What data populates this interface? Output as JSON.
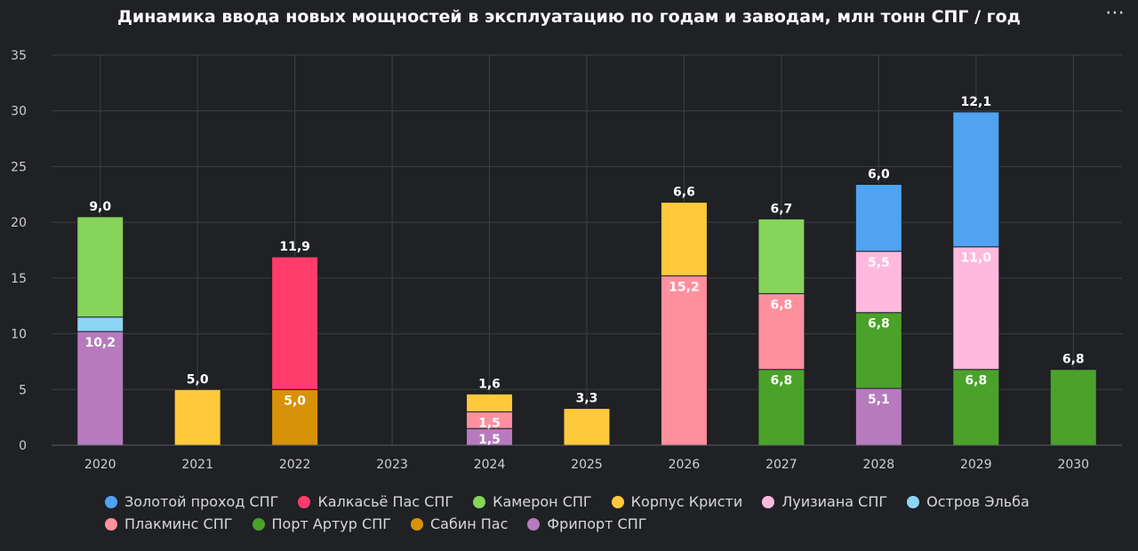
{
  "title": "Динамика ввода новых мощностей в эксплуатацию по годам и заводам, млн тонн СПГ / год",
  "menu_icon": "⋯",
  "chart_data": {
    "type": "bar",
    "stacked": true,
    "categories": [
      "2020",
      "2021",
      "2022",
      "2023",
      "2024",
      "2025",
      "2026",
      "2027",
      "2028",
      "2029",
      "2030"
    ],
    "ylim": [
      0,
      35
    ],
    "yticks": [
      0,
      5,
      10,
      15,
      20,
      25,
      30,
      35
    ],
    "grid": true,
    "legend_position": "bottom",
    "series": [
      {
        "name": "Фрипорт СПГ",
        "color": "#b77bbd",
        "values": [
          10.2,
          0,
          0,
          0,
          1.5,
          0,
          0,
          0,
          5.1,
          0,
          0
        ]
      },
      {
        "name": "Сабин Пас",
        "color": "#d79208",
        "values": [
          0,
          0,
          5.0,
          0,
          0,
          0,
          0,
          0,
          0,
          0,
          0
        ]
      },
      {
        "name": "Порт Артур СПГ",
        "color": "#4ba22a",
        "values": [
          0,
          0,
          0,
          0,
          0,
          0,
          0,
          6.8,
          6.8,
          6.8,
          6.8
        ]
      },
      {
        "name": "Плакминс СПГ",
        "color": "#ff909e",
        "values": [
          0,
          0,
          0,
          0,
          1.5,
          0,
          15.2,
          6.8,
          0,
          0,
          0
        ]
      },
      {
        "name": "Луизиана СПГ",
        "color": "#ffb9de",
        "values": [
          0,
          0,
          0,
          0,
          0,
          0,
          0,
          0,
          5.5,
          11.0,
          0
        ]
      },
      {
        "name": "Остров Эльба",
        "color": "#8cd6f3",
        "values": [
          1.3,
          0,
          0,
          0,
          0,
          0,
          0,
          0,
          0,
          0,
          0
        ]
      },
      {
        "name": "Корпус Кристи",
        "color": "#ffc93c",
        "values": [
          0,
          5.0,
          0,
          0,
          1.6,
          3.3,
          6.6,
          0,
          0,
          0,
          0
        ]
      },
      {
        "name": "Камерон СПГ",
        "color": "#86d45a",
        "values": [
          9.0,
          0,
          0,
          0,
          0,
          0,
          0,
          6.7,
          0,
          0,
          0
        ]
      },
      {
        "name": "Калкасьё Пас СПГ",
        "color": "#ff3c6a",
        "values": [
          0,
          0,
          11.9,
          0,
          0,
          0,
          0,
          0,
          0,
          0,
          0
        ]
      },
      {
        "name": "Золотой проход СПГ",
        "color": "#4fa3f0",
        "values": [
          0,
          0,
          0,
          0,
          0,
          0,
          0,
          0,
          6.0,
          12.1,
          0
        ]
      }
    ],
    "data_labels": [
      {
        "category": "2020",
        "series": "Фрипорт СПГ",
        "text": "10,2"
      },
      {
        "category": "2020",
        "series": "Камерон СПГ",
        "text": "9,0"
      },
      {
        "category": "2021",
        "series": "Корпус Кристи",
        "text": "5,0"
      },
      {
        "category": "2022",
        "series": "Сабин Пас",
        "text": "5,0"
      },
      {
        "category": "2022",
        "series": "Калкасьё Пас СПГ",
        "text": "11,9"
      },
      {
        "category": "2024",
        "series": "Фрипорт СПГ",
        "text": "1,5"
      },
      {
        "category": "2024",
        "series": "Плакминс СПГ",
        "text": "1,5"
      },
      {
        "category": "2024",
        "series": "Корпус Кристи",
        "text": "1,6"
      },
      {
        "category": "2025",
        "series": "Корпус Кристи",
        "text": "3,3"
      },
      {
        "category": "2026",
        "series": "Плакминс СПГ",
        "text": "15,2"
      },
      {
        "category": "2026",
        "series": "Корпус Кристи",
        "text": "6,6"
      },
      {
        "category": "2027",
        "series": "Порт Артур СПГ",
        "text": "6,8"
      },
      {
        "category": "2027",
        "series": "Плакминс СПГ",
        "text": "6,8"
      },
      {
        "category": "2027",
        "series": "Камерон СПГ",
        "text": "6,7"
      },
      {
        "category": "2028",
        "series": "Фрипорт СПГ",
        "text": "5,1"
      },
      {
        "category": "2028",
        "series": "Порт Артур СПГ",
        "text": "6,8"
      },
      {
        "category": "2028",
        "series": "Луизиана СПГ",
        "text": "5,5"
      },
      {
        "category": "2028",
        "series": "Золотой проход СПГ",
        "text": "6,0"
      },
      {
        "category": "2029",
        "series": "Порт Артур СПГ",
        "text": "6,8"
      },
      {
        "category": "2029",
        "series": "Луизиана СПГ",
        "text": "11,0"
      },
      {
        "category": "2029",
        "series": "Золотой проход СПГ",
        "text": "12,1"
      },
      {
        "category": "2030",
        "series": "Порт Артур СПГ",
        "text": "6,8"
      }
    ],
    "legend_order": [
      [
        "Золотой проход СПГ",
        "Калкасьё Пас СПГ",
        "Камерон СПГ",
        "Корпус Кристи",
        "Луизиана СПГ",
        "Остров Эльба"
      ],
      [
        "Плакминс СПГ",
        "Порт Артур СПГ",
        "Сабин Пас",
        "Фрипорт СПГ"
      ]
    ]
  }
}
